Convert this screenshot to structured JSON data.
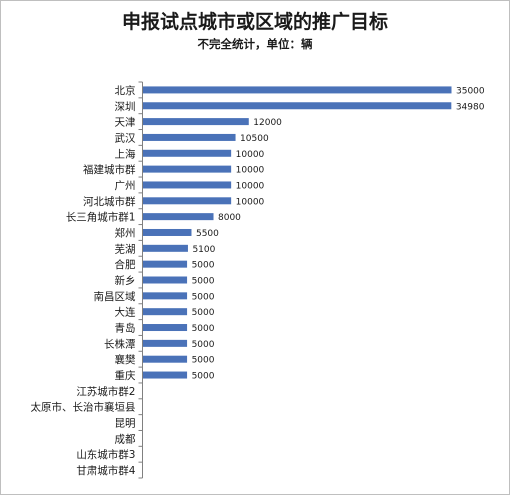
{
  "chart_data": {
    "type": "bar",
    "orientation": "horizontal",
    "title": "申报试点城市或区域的推广目标",
    "subtitle": "不完全统计，单位：辆",
    "categories": [
      "北京",
      "深圳",
      "天津",
      "武汉",
      "上海",
      "福建城市群",
      "广州",
      "河北城市群",
      "长三角城市群1",
      "郑州",
      "芜湖",
      "合肥",
      "新乡",
      "南昌区域",
      "大连",
      "青岛",
      "长株潭",
      "襄樊",
      "重庆",
      "江苏城市群2",
      "太原市、长治市襄垣县",
      "昆明",
      "成都",
      "山东城市群3",
      "甘肃城市群4"
    ],
    "values": [
      35000,
      34980,
      12000,
      10500,
      10000,
      10000,
      10000,
      10000,
      8000,
      5500,
      5100,
      5000,
      5000,
      5000,
      5000,
      5000,
      5000,
      5000,
      5000,
      null,
      null,
      null,
      null,
      null,
      null
    ],
    "data_labels": [
      "35000",
      "34980",
      "12000",
      "10500",
      "10000",
      "10000",
      "10000",
      "10000",
      "8000",
      "5500",
      "5100",
      "5000",
      "5000",
      "5000",
      "5000",
      "5000",
      "5000",
      "5000",
      "5000",
      "",
      "",
      "",
      "",
      "",
      ""
    ],
    "xlim": [
      0,
      35000
    ],
    "grid": false,
    "legend": "none",
    "bar_color": "#4a72b8",
    "axis_color": "#808080"
  }
}
